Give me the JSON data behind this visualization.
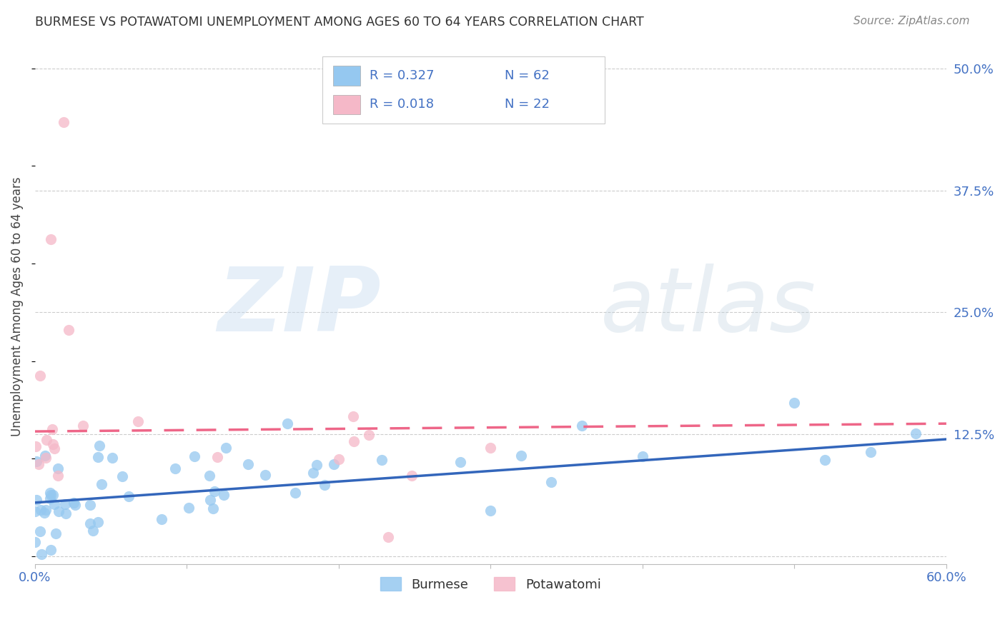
{
  "title": "BURMESE VS POTAWATOMI UNEMPLOYMENT AMONG AGES 60 TO 64 YEARS CORRELATION CHART",
  "source": "Source: ZipAtlas.com",
  "ylabel": "Unemployment Among Ages 60 to 64 years",
  "xlim": [
    0,
    0.6
  ],
  "ylim": [
    -0.008,
    0.52
  ],
  "yticks_right": [
    0.0,
    0.125,
    0.25,
    0.375,
    0.5
  ],
  "ytick_labels_right": [
    "",
    "12.5%",
    "25.0%",
    "37.5%",
    "50.0%"
  ],
  "burmese_color": "#95C8F0",
  "potawatomi_color": "#F5B8C8",
  "burmese_line_color": "#3366BB",
  "potawatomi_line_color": "#EE6688",
  "legend_text_color": "#4472C4",
  "legend_R_burmese": "R = 0.327",
  "legend_N_burmese": "N = 62",
  "legend_R_potawatomi": "R = 0.018",
  "legend_N_potawatomi": "N = 22",
  "burmese_trend_x0": 0.0,
  "burmese_trend_y0": 0.055,
  "burmese_trend_x1": 0.6,
  "burmese_trend_y1": 0.12,
  "potawatomi_trend_x0": 0.0,
  "potawatomi_trend_y0": 0.128,
  "potawatomi_trend_x1": 0.6,
  "potawatomi_trend_y1": 0.136,
  "watermark_zip": "ZIP",
  "watermark_atlas": "atlas",
  "background_color": "#FFFFFF",
  "grid_color": "#CCCCCC",
  "axis_label_color": "#4472C4",
  "tick_label_color": "#4472C4"
}
